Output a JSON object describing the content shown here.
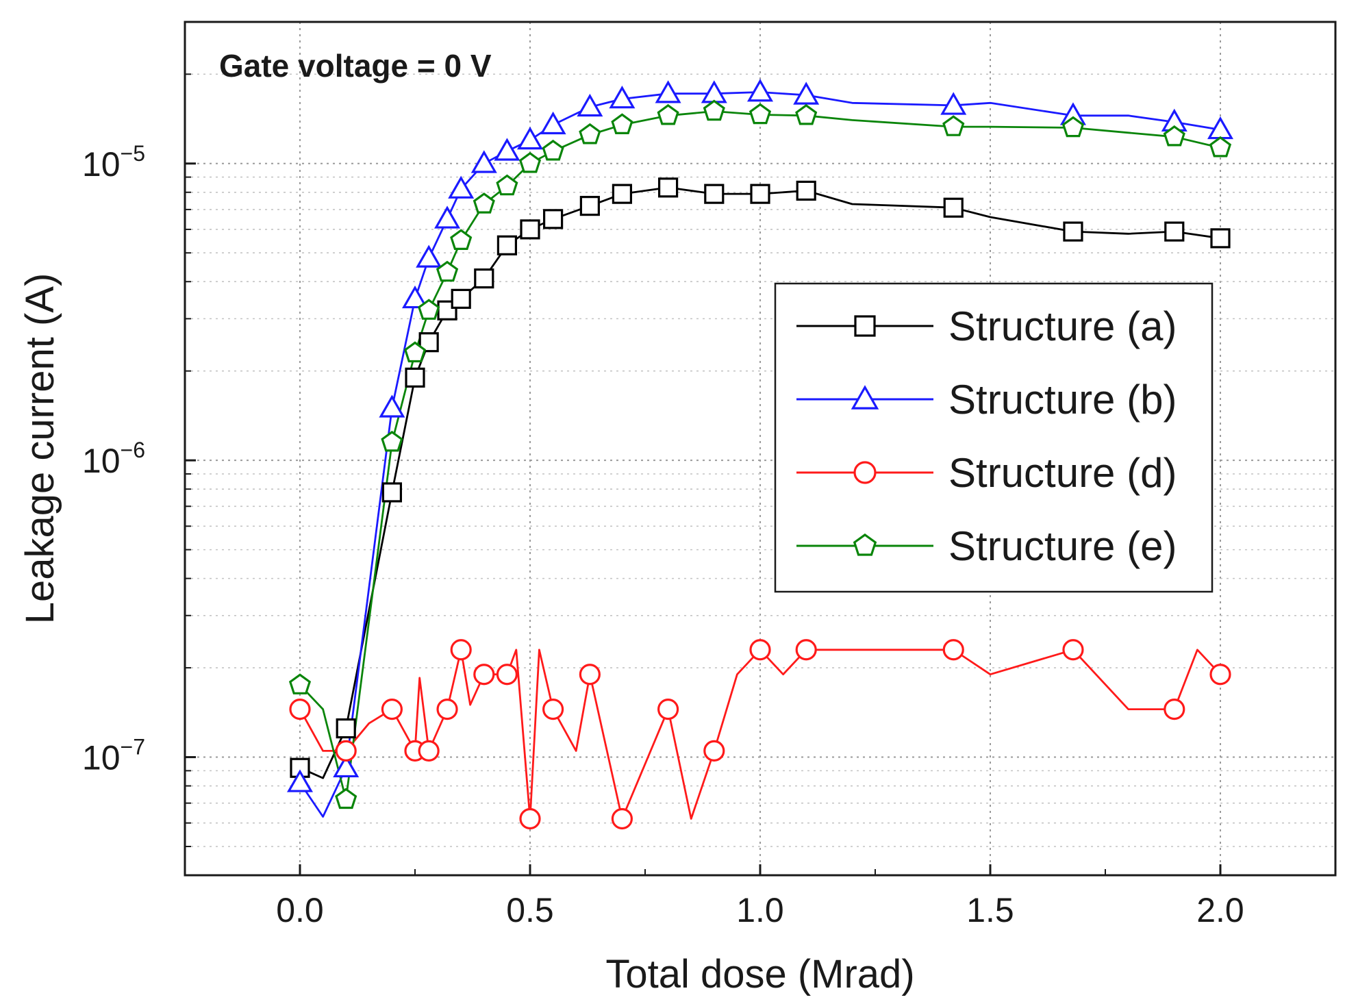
{
  "chart_data": {
    "type": "line",
    "title": "",
    "annotation": "Gate voltage = 0 V",
    "xlabel": "Total dose (Mrad)",
    "ylabel": "Leakage current (A)",
    "xlim": [
      -0.25,
      2.25
    ],
    "ylim": [
      4e-08,
      3e-05
    ],
    "yscale": "log",
    "grid": true,
    "legend_position": "right-middle",
    "x_ticks": [
      0.0,
      0.5,
      1.0,
      1.5,
      2.0
    ],
    "x_tick_labels": [
      "0.0",
      "0.5",
      "1.0",
      "1.5",
      "2.0"
    ],
    "y_ticks": [
      {
        "value": 1e-05,
        "base": "10",
        "exp": "−5"
      },
      {
        "value": 1e-06,
        "base": "10",
        "exp": "−6"
      },
      {
        "value": 1e-07,
        "base": "10",
        "exp": "−7"
      }
    ],
    "series": [
      {
        "name": "Structure (a)",
        "color": "#000000",
        "marker": "square",
        "x": [
          0.0,
          0.05,
          0.1,
          0.2,
          0.25,
          0.28,
          0.32,
          0.35,
          0.4,
          0.45,
          0.5,
          0.55,
          0.63,
          0.7,
          0.8,
          0.9,
          1.0,
          1.1,
          1.2,
          1.42,
          1.5,
          1.68,
          1.8,
          1.9,
          2.0
        ],
        "y": [
          9.2e-08,
          8.5e-08,
          1.25e-07,
          7.8e-07,
          1.9e-06,
          2.5e-06,
          3.2e-06,
          3.5e-06,
          4.1e-06,
          5.3e-06,
          6e-06,
          6.5e-06,
          7.2e-06,
          7.9e-06,
          8.3e-06,
          7.9e-06,
          7.9e-06,
          8.1e-06,
          7.3e-06,
          7.1e-06,
          6.6e-06,
          5.9e-06,
          5.8e-06,
          5.9e-06,
          5.6e-06
        ],
        "markers": [
          1,
          0,
          1,
          1,
          1,
          1,
          1,
          1,
          1,
          1,
          1,
          1,
          1,
          1,
          1,
          1,
          1,
          1,
          0,
          1,
          0,
          1,
          0,
          1,
          1
        ]
      },
      {
        "name": "Structure (b)",
        "color": "#1a1aff",
        "marker": "triangle",
        "x": [
          0.0,
          0.05,
          0.1,
          0.2,
          0.25,
          0.28,
          0.32,
          0.35,
          0.4,
          0.45,
          0.5,
          0.55,
          0.63,
          0.7,
          0.8,
          0.9,
          1.0,
          1.1,
          1.2,
          1.42,
          1.5,
          1.68,
          1.8,
          1.9,
          2.0
        ],
        "y": [
          8.2e-08,
          6.3e-08,
          9.2e-08,
          1.5e-06,
          3.5e-06,
          4.8e-06,
          6.5e-06,
          8.2e-06,
          1e-05,
          1.1e-05,
          1.2e-05,
          1.35e-05,
          1.55e-05,
          1.65e-05,
          1.72e-05,
          1.72e-05,
          1.74e-05,
          1.7e-05,
          1.6e-05,
          1.57e-05,
          1.6e-05,
          1.45e-05,
          1.45e-05,
          1.38e-05,
          1.3e-05
        ],
        "markers": [
          1,
          0,
          1,
          1,
          1,
          1,
          1,
          1,
          1,
          1,
          1,
          1,
          1,
          1,
          1,
          1,
          1,
          1,
          0,
          1,
          0,
          1,
          0,
          1,
          1
        ]
      },
      {
        "name": "Structure (d)",
        "color": "#ff1a1a",
        "marker": "circle",
        "x": [
          0.0,
          0.05,
          0.1,
          0.15,
          0.2,
          0.25,
          0.26,
          0.28,
          0.32,
          0.35,
          0.37,
          0.4,
          0.45,
          0.47,
          0.5,
          0.52,
          0.55,
          0.6,
          0.63,
          0.7,
          0.8,
          0.85,
          0.9,
          0.95,
          1.0,
          1.05,
          1.1,
          1.42,
          1.5,
          1.68,
          1.8,
          1.9,
          1.95,
          2.0
        ],
        "y": [
          1.45e-07,
          1.05e-07,
          1.05e-07,
          1.3e-07,
          1.45e-07,
          1.05e-07,
          1.85e-07,
          1.05e-07,
          1.45e-07,
          2.3e-07,
          1.5e-07,
          1.9e-07,
          1.9e-07,
          2.3e-07,
          6.2e-08,
          2.3e-07,
          1.45e-07,
          1.05e-07,
          1.9e-07,
          6.2e-08,
          1.45e-07,
          6.2e-08,
          1.05e-07,
          1.9e-07,
          2.3e-07,
          1.9e-07,
          2.3e-07,
          2.3e-07,
          1.9e-07,
          2.3e-07,
          1.45e-07,
          1.45e-07,
          2.3e-07,
          1.9e-07
        ],
        "markers": [
          1,
          0,
          1,
          0,
          1,
          1,
          0,
          1,
          1,
          1,
          0,
          1,
          1,
          0,
          1,
          0,
          1,
          0,
          1,
          1,
          1,
          0,
          1,
          0,
          1,
          0,
          1,
          1,
          0,
          1,
          0,
          1,
          0,
          1
        ]
      },
      {
        "name": "Structure (e)",
        "color": "#0a850a",
        "marker": "pentagon",
        "x": [
          0.0,
          0.05,
          0.1,
          0.2,
          0.25,
          0.28,
          0.32,
          0.35,
          0.4,
          0.45,
          0.5,
          0.55,
          0.63,
          0.7,
          0.8,
          0.9,
          1.0,
          1.1,
          1.2,
          1.42,
          1.5,
          1.68,
          1.8,
          1.9,
          2.0
        ],
        "y": [
          1.75e-07,
          1.45e-07,
          7.2e-08,
          1.15e-06,
          2.3e-06,
          3.2e-06,
          4.3e-06,
          5.5e-06,
          7.3e-06,
          8.4e-06,
          1e-05,
          1.1e-05,
          1.25e-05,
          1.35e-05,
          1.45e-05,
          1.5e-05,
          1.46e-05,
          1.45e-05,
          1.4e-05,
          1.33e-05,
          1.33e-05,
          1.32e-05,
          1.27e-05,
          1.23e-05,
          1.13e-05
        ],
        "markers": [
          1,
          0,
          1,
          1,
          1,
          1,
          1,
          1,
          1,
          1,
          1,
          1,
          1,
          1,
          1,
          1,
          1,
          1,
          0,
          1,
          0,
          1,
          0,
          1,
          1
        ]
      }
    ]
  }
}
